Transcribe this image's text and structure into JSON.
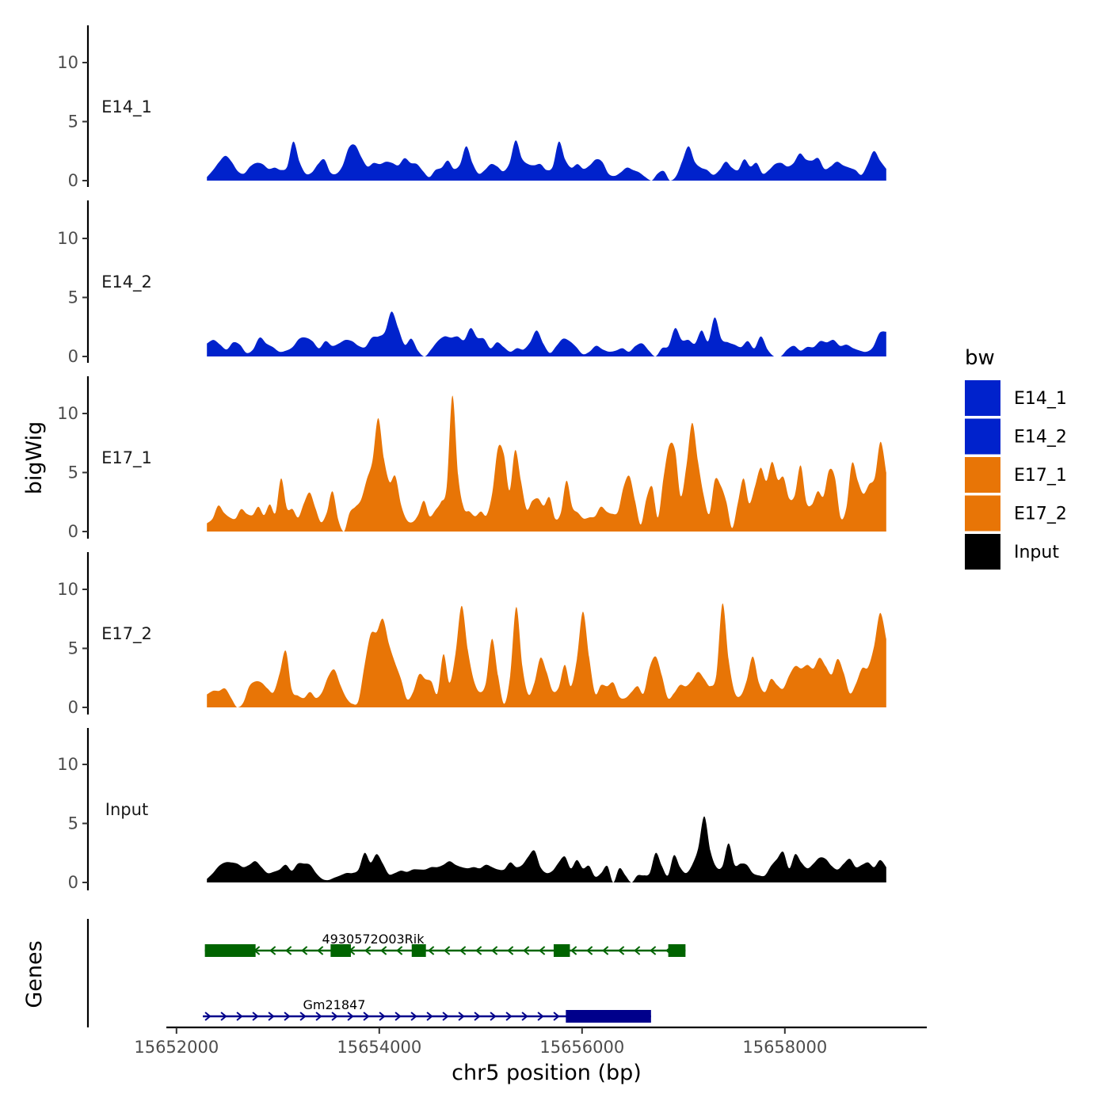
{
  "chart_data": {
    "type": "area",
    "title": "",
    "xlabel": "chr5 position (bp)",
    "ylabel": "bigWig",
    "genes_label": "Genes",
    "xlim": [
      15651900,
      15659400
    ],
    "ylim": [
      0,
      13
    ],
    "x_ticks": [
      15652000,
      15654000,
      15656000,
      15658000
    ],
    "x_tick_labels": [
      "15652000",
      "15654000",
      "15656000",
      "15658000"
    ],
    "y_ticks": [
      0,
      5,
      10
    ],
    "y_tick_labels": [
      "0",
      "5",
      "10"
    ],
    "x_start": 15652300,
    "x_end": 15659000,
    "legend": {
      "title": "bw",
      "position": "right",
      "entries": [
        {
          "label": "E14_1",
          "color": "#0022CC"
        },
        {
          "label": "E14_2",
          "color": "#0022CC"
        },
        {
          "label": "E17_1",
          "color": "#E87506"
        },
        {
          "label": "E17_2",
          "color": "#E87506"
        },
        {
          "label": "Input",
          "color": "#000000"
        }
      ]
    },
    "series": [
      {
        "name": "E14_1",
        "color": "#0022CC",
        "values": [
          0.3,
          0.9,
          1.6,
          2.1,
          1.6,
          0.8,
          0.6,
          1.2,
          1.5,
          1.4,
          1.0,
          1.1,
          0.9,
          1.2,
          3.3,
          1.6,
          0.6,
          0.7,
          1.4,
          1.8,
          0.7,
          0.6,
          1.3,
          2.8,
          3.0,
          2.0,
          1.2,
          1.5,
          1.4,
          1.6,
          1.5,
          1.3,
          1.9,
          1.5,
          1.4,
          0.8,
          0.3,
          0.9,
          1.1,
          1.7,
          1.0,
          1.4,
          2.9,
          1.5,
          0.6,
          0.9,
          1.4,
          1.2,
          0.8,
          1.5,
          3.4,
          1.9,
          1.4,
          1.3,
          1.4,
          0.9,
          1.2,
          3.3,
          1.8,
          1.1,
          1.4,
          1.0,
          1.3,
          1.8,
          1.6,
          0.6,
          0.4,
          0.7,
          1.1,
          0.9,
          0.7,
          0.3,
          0.0,
          0.6,
          0.8,
          0.0,
          0.4,
          1.7,
          2.9,
          1.6,
          1.1,
          0.9,
          0.5,
          0.9,
          1.6,
          1.1,
          0.9,
          1.8,
          1.2,
          1.5,
          0.6,
          0.9,
          1.4,
          1.5,
          1.2,
          1.5,
          2.3,
          1.8,
          1.7,
          1.9,
          1.0,
          1.2,
          1.6,
          1.3,
          1.1,
          0.9,
          0.5,
          1.4,
          2.5,
          1.7,
          1.0
        ]
      },
      {
        "name": "E14_2",
        "color": "#0022CC",
        "values": [
          1.1,
          1.4,
          1.0,
          0.6,
          1.2,
          1.0,
          0.3,
          0.6,
          1.6,
          1.1,
          0.8,
          0.4,
          0.5,
          0.8,
          1.5,
          1.6,
          1.3,
          0.7,
          1.3,
          0.9,
          1.1,
          1.4,
          1.3,
          0.9,
          0.8,
          1.6,
          1.7,
          2.1,
          3.8,
          2.4,
          1.0,
          1.5,
          0.5,
          0.0,
          0.6,
          1.3,
          1.7,
          1.6,
          1.7,
          1.4,
          2.4,
          1.6,
          1.5,
          0.7,
          1.2,
          0.8,
          0.4,
          0.7,
          0.6,
          1.2,
          2.2,
          1.1,
          0.3,
          0.9,
          1.5,
          1.3,
          0.8,
          0.2,
          0.4,
          0.9,
          0.6,
          0.4,
          0.5,
          0.7,
          0.4,
          0.9,
          1.1,
          0.5,
          0.0,
          0.7,
          0.9,
          2.4,
          1.4,
          1.4,
          1.1,
          2.2,
          1.3,
          3.3,
          1.5,
          1.2,
          1.0,
          0.8,
          1.3,
          0.7,
          1.7,
          0.6,
          0.0,
          0.0,
          0.6,
          0.9,
          0.5,
          0.8,
          0.8,
          1.3,
          1.2,
          1.4,
          0.9,
          1.0,
          0.7,
          0.5,
          0.4,
          0.8,
          2.0,
          2.1
        ]
      },
      {
        "name": "E17_1",
        "color": "#E87506",
        "values": [
          0.7,
          1.1,
          2.2,
          1.6,
          1.2,
          1.1,
          1.9,
          1.5,
          1.4,
          2.1,
          1.4,
          2.3,
          1.6,
          4.5,
          2.0,
          1.9,
          1.2,
          2.4,
          3.3,
          2.0,
          0.8,
          1.6,
          3.4,
          1.0,
          0.0,
          1.6,
          2.1,
          2.7,
          4.4,
          6.0,
          9.6,
          6.2,
          4.2,
          4.7,
          2.3,
          1.0,
          0.8,
          1.4,
          2.6,
          1.3,
          1.8,
          2.5,
          3.8,
          11.5,
          4.8,
          2.0,
          1.7,
          1.3,
          1.7,
          1.4,
          3.3,
          7.1,
          6.6,
          3.5,
          6.9,
          4.3,
          1.9,
          2.6,
          2.8,
          2.2,
          2.9,
          1.1,
          1.6,
          4.3,
          2.1,
          1.6,
          1.1,
          1.2,
          1.3,
          2.1,
          1.7,
          1.5,
          1.7,
          3.8,
          4.7,
          2.6,
          0.6,
          2.8,
          3.8,
          1.2,
          4.6,
          7.3,
          6.9,
          3.0,
          5.6,
          9.2,
          6.0,
          3.1,
          1.5,
          4.4,
          3.9,
          2.5,
          0.3,
          2.4,
          4.5,
          2.4,
          3.8,
          5.4,
          4.3,
          5.9,
          4.4,
          4.6,
          2.8,
          3.1,
          5.6,
          2.5,
          2.3,
          3.4,
          3.0,
          5.2,
          4.6,
          1.2,
          2.0,
          5.8,
          4.3,
          3.2,
          4.0,
          4.6,
          7.6,
          5.0
        ]
      },
      {
        "name": "E17_2",
        "color": "#E87506",
        "values": [
          1.1,
          1.4,
          1.4,
          1.6,
          0.8,
          0.0,
          0.4,
          1.8,
          2.2,
          2.1,
          1.6,
          1.3,
          2.9,
          4.8,
          1.5,
          1.0,
          0.8,
          1.3,
          0.8,
          1.3,
          2.6,
          3.2,
          1.9,
          0.8,
          0.3,
          0.6,
          3.6,
          6.2,
          6.4,
          7.5,
          5.4,
          3.8,
          2.4,
          0.7,
          1.3,
          2.8,
          2.4,
          2.2,
          1.2,
          4.5,
          2.1,
          4.6,
          8.6,
          4.9,
          2.3,
          1.3,
          2.1,
          5.8,
          2.7,
          0.3,
          2.7,
          8.5,
          3.5,
          1.1,
          2.1,
          4.2,
          3.0,
          1.4,
          1.7,
          3.6,
          1.8,
          4.1,
          8.1,
          4.3,
          1.2,
          1.9,
          1.8,
          2.1,
          0.9,
          0.8,
          1.3,
          1.8,
          1.2,
          3.4,
          4.3,
          2.7,
          0.8,
          1.2,
          1.9,
          1.8,
          2.3,
          3.0,
          2.4,
          1.8,
          2.8,
          8.8,
          4.1,
          1.3,
          1.0,
          2.3,
          4.3,
          2.1,
          1.3,
          2.4,
          1.9,
          1.6,
          2.7,
          3.5,
          3.3,
          3.6,
          3.3,
          4.2,
          3.5,
          2.8,
          4.1,
          2.9,
          1.2,
          2.0,
          3.3,
          3.4,
          5.2,
          8.0,
          5.8
        ]
      },
      {
        "name": "Input",
        "color": "#000000",
        "values": [
          0.3,
          0.8,
          1.4,
          1.7,
          1.7,
          1.6,
          1.3,
          1.5,
          1.8,
          1.3,
          0.8,
          0.9,
          1.1,
          1.5,
          1.0,
          1.6,
          1.6,
          1.5,
          0.8,
          0.3,
          0.2,
          0.4,
          0.6,
          0.8,
          0.8,
          1.1,
          2.5,
          1.7,
          2.4,
          1.6,
          0.7,
          0.8,
          1.0,
          0.9,
          1.1,
          1.1,
          1.1,
          1.3,
          1.3,
          1.5,
          1.8,
          1.5,
          1.3,
          1.2,
          1.3,
          1.2,
          1.5,
          1.3,
          1.1,
          1.1,
          1.7,
          1.3,
          1.5,
          2.2,
          2.7,
          1.3,
          0.8,
          1.0,
          1.7,
          2.2,
          1.2,
          1.9,
          1.2,
          1.4,
          0.5,
          0.8,
          1.4,
          0.0,
          1.2,
          0.6,
          0.0,
          0.6,
          0.6,
          0.8,
          2.5,
          1.4,
          0.6,
          2.3,
          1.3,
          0.8,
          1.5,
          2.9,
          5.6,
          2.7,
          1.3,
          1.4,
          3.3,
          1.5,
          1.6,
          1.5,
          0.8,
          0.6,
          0.6,
          1.4,
          2.0,
          2.6,
          1.2,
          2.4,
          1.7,
          1.2,
          1.6,
          2.1,
          2.0,
          1.4,
          1.1,
          1.6,
          2.0,
          1.3,
          1.5,
          1.7,
          1.3,
          1.9,
          1.3
        ]
      }
    ],
    "genes": [
      {
        "name": "4930572O03Rik",
        "strand": "-",
        "color": "#006400",
        "start": 15652280,
        "end": 15657020,
        "exons": [
          [
            15652280,
            15652780
          ],
          [
            15653520,
            15653720
          ],
          [
            15654320,
            15654460
          ],
          [
            15655720,
            15655880
          ],
          [
            15656850,
            15657020
          ]
        ]
      },
      {
        "name": "Gm21847",
        "strand": "+",
        "color": "#00008B",
        "start": 15652260,
        "end": 15656680,
        "exons": [
          [
            15655840,
            15656680
          ]
        ]
      }
    ]
  }
}
